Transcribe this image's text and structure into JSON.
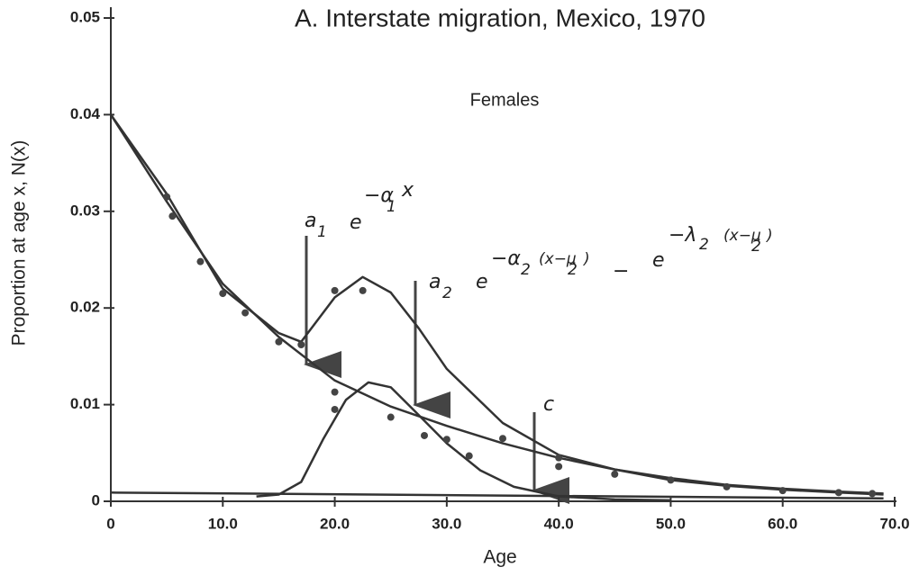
{
  "chart_data": {
    "type": "line",
    "title": "A.  Interstate migration, Mexico, 1970",
    "subtitle": "Females",
    "x_label": "Age",
    "y_label": "Proportion at age x, N(x)",
    "annotations": [
      [
        "a",
        "1",
        "e",
        "−α",
        "1",
        "x"
      ],
      [
        "a",
        "2",
        "e",
        "−α",
        "2",
        "(x−μ",
        "2",
        ")",
        "−",
        "e",
        "−λ",
        "2",
        "(x−μ",
        "2",
        ")"
      ],
      [
        "c"
      ]
    ],
    "xlim": [
      0,
      70
    ],
    "ylim": [
      0,
      0.05
    ],
    "xticks": [
      0,
      {
        "value": 10,
        "label": "10.0"
      },
      {
        "value": 20,
        "label": "20.0"
      },
      {
        "value": 30,
        "label": "30.0"
      },
      {
        "value": 40,
        "label": "40.0"
      },
      {
        "value": 50,
        "label": "50.0"
      },
      {
        "value": 60,
        "label": "60.0"
      },
      {
        "value": 70,
        "label": "70.0"
      }
    ],
    "yticks": [
      0,
      0.01,
      0.02,
      0.03,
      0.04,
      0.05
    ],
    "grid": false,
    "series": [
      {
        "color": "#333333",
        "x": [
          0,
          5,
          10,
          15,
          17,
          20,
          22.5,
          25,
          27.5,
          30,
          35,
          40,
          45,
          50,
          55,
          60,
          65,
          69
        ],
        "values": [
          0.04,
          0.0318,
          0.022,
          0.0174,
          0.0165,
          0.0211,
          0.0232,
          0.0216,
          0.0179,
          0.0137,
          0.0081,
          0.0048,
          0.0033,
          0.0022,
          0.0016,
          0.0012,
          0.0009,
          0.0007
        ]
      },
      {
        "color": "#333333",
        "x": [
          0,
          5,
          10,
          15,
          20,
          25,
          30,
          35,
          40,
          45,
          50,
          55,
          60,
          65,
          69
        ],
        "values": [
          0.04,
          0.031,
          0.0225,
          0.017,
          0.0125,
          0.0098,
          0.0078,
          0.006,
          0.0045,
          0.0033,
          0.0024,
          0.0017,
          0.0013,
          0.001,
          0.0008
        ]
      },
      {
        "color": "#333333",
        "x": [
          13,
          15,
          17,
          19,
          21,
          23,
          25,
          27,
          30,
          33,
          36,
          40,
          45,
          50
        ],
        "values": [
          0.0005,
          0.0007,
          0.002,
          0.0065,
          0.0105,
          0.0123,
          0.0118,
          0.0095,
          0.006,
          0.0032,
          0.0015,
          0.0005,
          0.0002,
          0.0001
        ]
      },
      {
        "color": "#333333",
        "x": [
          0,
          69
        ],
        "values": [
          0.0009,
          0.0003
        ]
      }
    ],
    "points": {
      "color": "#444444",
      "x": [
        5,
        5.5,
        8,
        10,
        12,
        15,
        17,
        20,
        20,
        20,
        22.5,
        25,
        28,
        30,
        32,
        35,
        40,
        40,
        45,
        50,
        55,
        60,
        65,
        68
      ],
      "values": [
        0.0315,
        0.0295,
        0.0248,
        0.0215,
        0.0195,
        0.0165,
        0.0162,
        0.0218,
        0.0113,
        0.0095,
        0.0218,
        0.0087,
        0.0068,
        0.0064,
        0.0047,
        0.0065,
        0.0045,
        0.0036,
        0.0028,
        0.0022,
        0.0015,
        0.0011,
        0.0009,
        0.0008
      ]
    }
  }
}
